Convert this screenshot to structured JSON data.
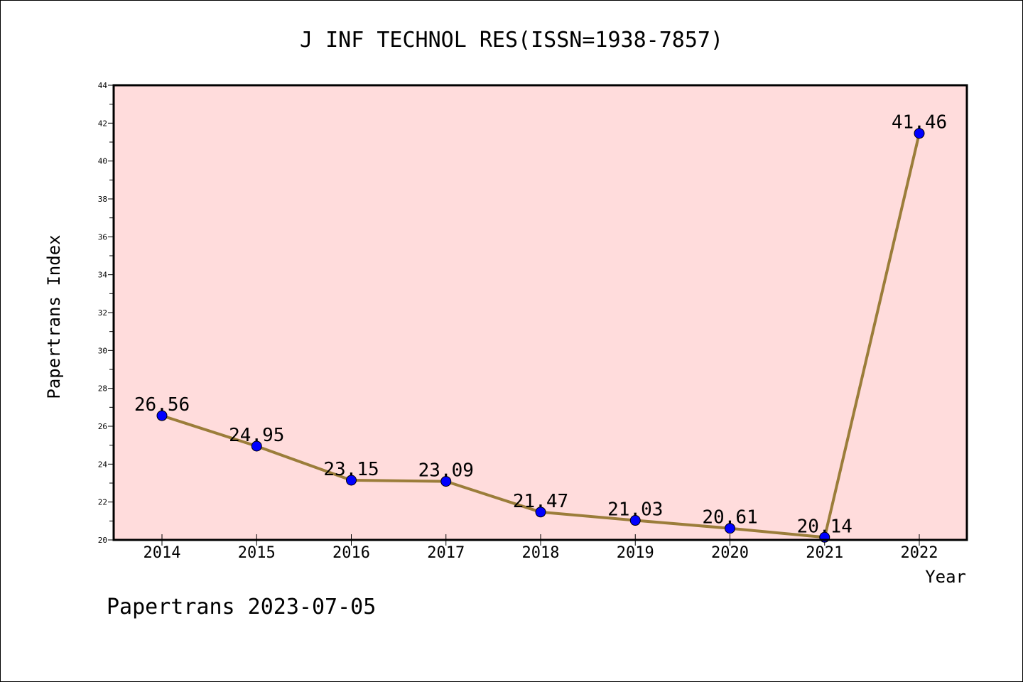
{
  "chart_data": {
    "type": "line",
    "title": "J INF TECHNOL RES(ISSN=1938-7857)",
    "xlabel": "Year",
    "ylabel": "Papertrans Index",
    "x": [
      "2014",
      "2015",
      "2016",
      "2017",
      "2018",
      "2019",
      "2020",
      "2021",
      "2022"
    ],
    "values": [
      26.56,
      24.95,
      23.15,
      23.09,
      21.47,
      21.03,
      20.61,
      20.14,
      41.46
    ],
    "data_labels": [
      "26.56",
      "24.95",
      "23.15",
      "23.09",
      "21.47",
      "21.03",
      "20.61",
      "20.14",
      "41.46"
    ],
    "ylim": [
      20,
      44
    ],
    "yticks": [
      "20",
      "22",
      "24",
      "26",
      "28",
      "30",
      "32",
      "34",
      "36",
      "38",
      "40",
      "42",
      "44"
    ],
    "grid": false,
    "legend": "none",
    "colors": {
      "plot_background": "#ffdcdc",
      "line": "#9b7d3a",
      "marker": "#0000ff"
    }
  },
  "footer": "Papertrans 2023-07-05"
}
